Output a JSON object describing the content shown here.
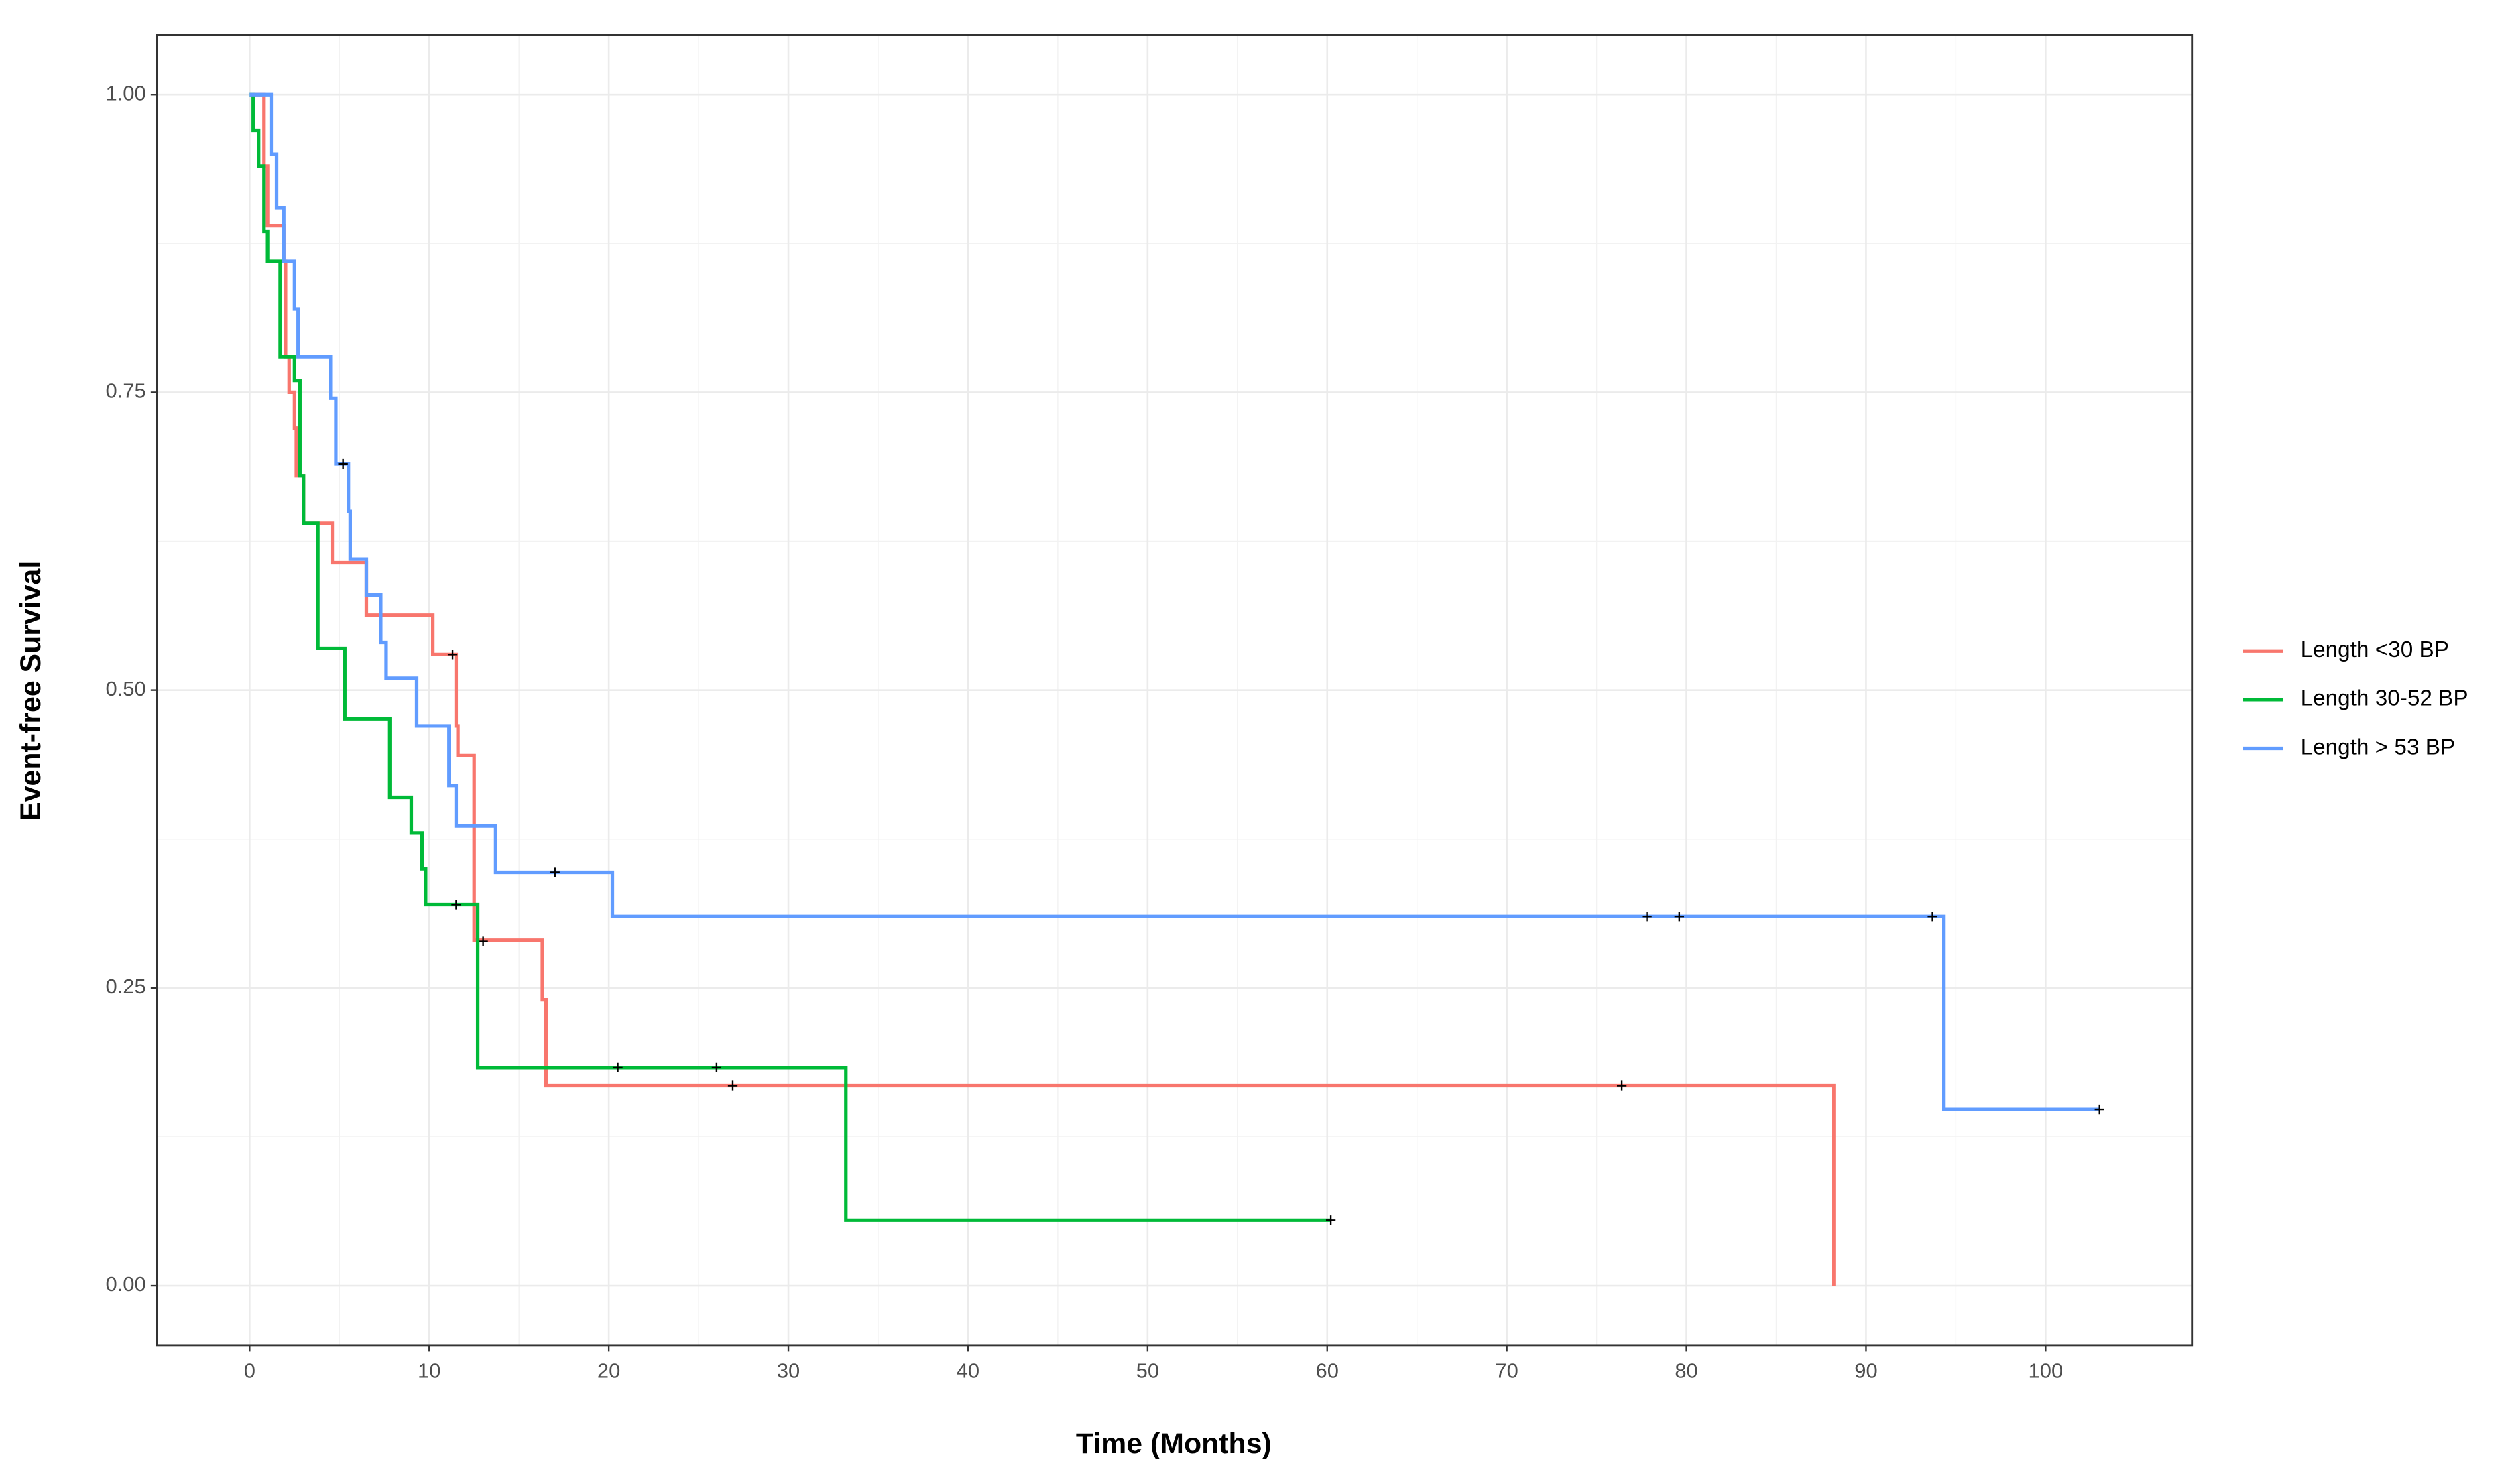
{
  "chart_data": {
    "type": "step",
    "x_label": "Time (Months)",
    "y_label": "Event-free Survival",
    "xlim": [
      -5.15,
      108.15
    ],
    "ylim": [
      -0.05,
      1.05
    ],
    "xticks": [
      0,
      10,
      20,
      30,
      40,
      50,
      60,
      70,
      80,
      90,
      100
    ],
    "yticks": [
      {
        "value": 0,
        "label": "0.00"
      },
      {
        "value": 0.25,
        "label": "0.25"
      },
      {
        "value": 0.5,
        "label": "0.50"
      },
      {
        "value": 0.75,
        "label": "0.75"
      },
      {
        "value": 1,
        "label": "1.00"
      }
    ],
    "grid": true,
    "legend": "right",
    "series": [
      {
        "name": "Length <30 BP",
        "color": "#f8766d",
        "x": [
          0.2,
          0.8,
          1.0,
          1.9,
          2.0,
          2.2,
          2.5,
          2.6,
          3.0,
          4.6,
          6.5,
          10.2,
          11.5,
          11.6,
          12.5,
          16.3,
          16.5,
          88.2
        ],
        "y": [
          1.0,
          0.94,
          0.89,
          0.86,
          0.78,
          0.75,
          0.72,
          0.68,
          0.64,
          0.607,
          0.563,
          0.53,
          0.47,
          0.445,
          0.29,
          0.24,
          0.168,
          0
        ],
        "censor_x": [
          11.3,
          13.0,
          26.9,
          76.4
        ],
        "censor_y": [
          0.53,
          0.289,
          0.168,
          0.168
        ]
      },
      {
        "name": "Length 30-52 BP",
        "color": "#00ba38",
        "x": [
          0,
          0.2,
          0.5,
          0.8,
          1.0,
          1.7,
          2.5,
          2.8,
          3.0,
          3.8,
          5.3,
          7.8,
          9.0,
          9.6,
          9.8,
          12.7,
          33.2,
          60.2
        ],
        "y": [
          1.0,
          0.97,
          0.94,
          0.885,
          0.86,
          0.78,
          0.76,
          0.68,
          0.64,
          0.535,
          0.476,
          0.41,
          0.38,
          0.35,
          0.32,
          0.183,
          0.055,
          0.055
        ],
        "censor_x": [
          11.5,
          20.5,
          26.0,
          60.2
        ],
        "censor_y": [
          0.32,
          0.183,
          0.183,
          0.055
        ]
      },
      {
        "name": "Length > 53 BP",
        "color": "#619cff",
        "x": [
          0,
          1.2,
          1.5,
          1.9,
          2.5,
          2.7,
          4.5,
          4.8,
          5.5,
          5.6,
          6.5,
          7.3,
          7.6,
          9.3,
          11.1,
          11.5,
          13.7,
          20.2,
          94.3,
          103
        ],
        "y": [
          1.0,
          0.95,
          0.905,
          0.86,
          0.82,
          0.78,
          0.745,
          0.69,
          0.65,
          0.61,
          0.58,
          0.54,
          0.51,
          0.47,
          0.42,
          0.386,
          0.347,
          0.31,
          0.148,
          0.148
        ],
        "censor_x": [
          5.2,
          17.0,
          77.8,
          79.6,
          93.7,
          103
        ],
        "censor_y": [
          0.69,
          0.347,
          0.31,
          0.31,
          0.31,
          0.148
        ]
      }
    ]
  }
}
